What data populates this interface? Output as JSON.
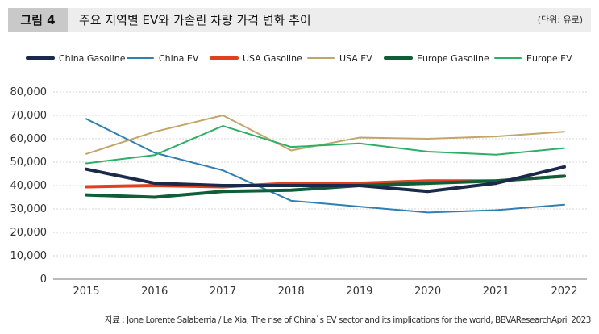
{
  "header": {
    "figure_label": "그림 4",
    "title": "주요 지역별 EV와 가솔린 차량 가격 변화 추이",
    "unit": "(단위: 유로)"
  },
  "source": "자료 : Jone Lorente Salaberria / Le Xia, The rise of China`s EV sector and its implications for the world, BBVAResearchApril 2023",
  "chart_data": {
    "type": "line",
    "x": [
      2015,
      2016,
      2017,
      2018,
      2019,
      2020,
      2021,
      2022
    ],
    "ylim": [
      0,
      80000
    ],
    "yticks": [
      0,
      10000,
      20000,
      30000,
      40000,
      50000,
      60000,
      70000,
      80000
    ],
    "ytick_labels": [
      "0",
      "10,000",
      "20,000",
      "30,000",
      "40,000",
      "50,000",
      "60,000",
      "70,000",
      "80,000"
    ],
    "grid": "horizontal",
    "legend_position": "top",
    "series": [
      {
        "name": "China Gasoline",
        "color": "#1b2a4a",
        "style": "thick",
        "values": [
          47000,
          41000,
          40000,
          40000,
          40000,
          37500,
          41000,
          48000
        ]
      },
      {
        "name": "China EV",
        "color": "#2f7fb0",
        "style": "thin",
        "values": [
          68500,
          54000,
          46500,
          33500,
          31000,
          28500,
          29500,
          31800
        ]
      },
      {
        "name": "USA Gasoline",
        "color": "#e0401e",
        "style": "thick",
        "values": [
          39500,
          40000,
          39500,
          41000,
          41000,
          42000,
          42000,
          44000
        ]
      },
      {
        "name": "USA EV",
        "color": "#c2a56a",
        "style": "thin",
        "values": [
          53500,
          63000,
          70000,
          55000,
          60500,
          60000,
          61000,
          63000
        ]
      },
      {
        "name": "Europe Gasoline",
        "color": "#0e5e38",
        "style": "thick",
        "values": [
          36000,
          35000,
          37500,
          38000,
          40000,
          41000,
          42000,
          44000
        ]
      },
      {
        "name": "Europe EV",
        "color": "#2fae66",
        "style": "thin",
        "values": [
          49500,
          53000,
          65500,
          56500,
          58000,
          54500,
          53200,
          56000
        ]
      }
    ]
  }
}
